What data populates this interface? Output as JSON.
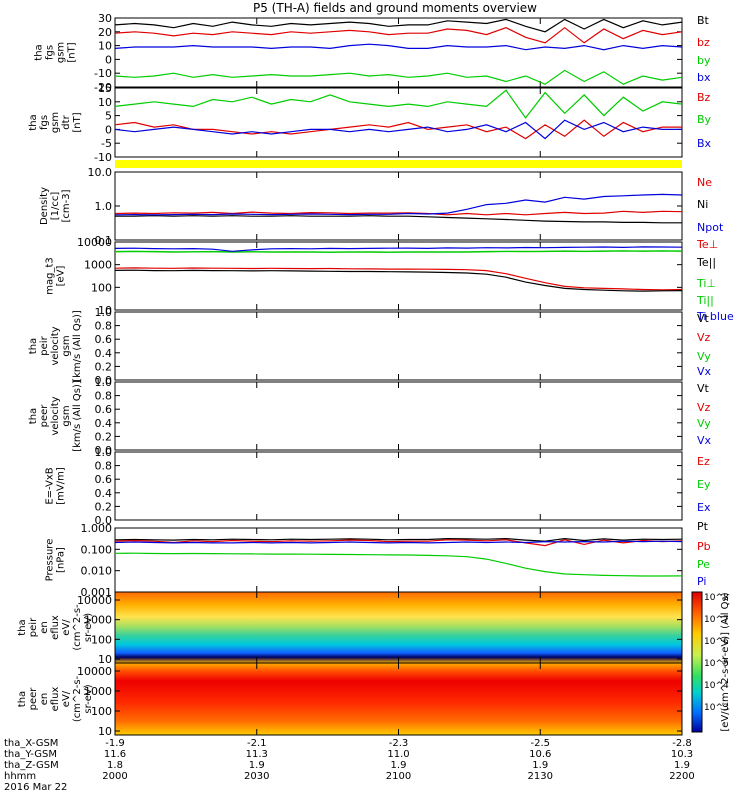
{
  "title": "P5 (TH-A) fields and ground moments overview",
  "colors": {
    "black": "#000000",
    "red": "#e00000",
    "green": "#00cc00",
    "blue": "#0000dd",
    "yellow": "#ffff00"
  },
  "ylabels": [
    [
      "tha",
      "fgs",
      "gsm",
      "[nT]"
    ],
    [
      "tha",
      "fgs",
      "gsm",
      "dtr",
      "[nT]"
    ],
    [
      "Density",
      "[1/cc]",
      "[cm-3]"
    ],
    [
      "mag_t3",
      "[eV]"
    ],
    [
      "tha",
      "peir",
      "velocity",
      "gsm",
      "[km/s (All Qs)]"
    ],
    [
      "tha",
      "peer",
      "velocity",
      "gsm",
      "[km/s (All Qs)]"
    ],
    [
      "E=-VxB",
      "[mV/m]"
    ],
    [
      "Pressure",
      "[nPa]"
    ],
    [
      "tha",
      "peir",
      "en",
      "eflux",
      "eV/",
      "(cm^2-s-",
      "sr-eV)"
    ],
    [
      "tha",
      "peer",
      "en",
      "eflux",
      "eV/",
      "(cm^2-s-",
      "sr-eV)"
    ]
  ],
  "colorbar_label": "[eV/(cm^2-s-sr-eV)] (All Qs)",
  "colorbar_ticks": [
    "10^8",
    "10^7",
    "10^6",
    "10^5",
    "10^4",
    "10^3"
  ],
  "orbit": {
    "rows": [
      "tha_X-GSM",
      "tha_Y-GSM",
      "tha_Z-GSM",
      "hhmm",
      "2016 Mar 22"
    ],
    "ticks": [
      [
        "-1.9",
        "-2.1",
        "-2.3",
        "-2.5",
        "-2.8"
      ],
      [
        "11.6",
        "11.3",
        "11.0",
        "10.6",
        "10.3"
      ],
      [
        "1.8",
        "1.9",
        "1.9",
        "1.9",
        "1.9"
      ],
      [
        "2000",
        "2030",
        "2100",
        "2130",
        "2200"
      ]
    ]
  },
  "chart_data": [
    {
      "type": "line",
      "x_range": [
        "2000",
        "2200"
      ],
      "ylim": [
        -20,
        30
      ],
      "y_ticks": [
        "30",
        "20",
        "10",
        "0",
        "-10",
        "-20"
      ],
      "series": [
        {
          "name": "Bt",
          "color": "#000000",
          "values": [
            25,
            26,
            25,
            23,
            26,
            24,
            27,
            25,
            24,
            26,
            25,
            26,
            27,
            26,
            24,
            25,
            25,
            28,
            27,
            26,
            29,
            24,
            20,
            29,
            22,
            29,
            23,
            28,
            25,
            27
          ]
        },
        {
          "name": "bz",
          "color": "#e00000",
          "values": [
            19,
            20,
            19,
            17,
            19,
            18,
            20,
            19,
            18,
            20,
            19,
            20,
            21,
            20,
            18,
            19,
            19,
            22,
            21,
            18,
            23,
            16,
            12,
            23,
            12,
            22,
            15,
            21,
            18,
            20
          ]
        },
        {
          "name": "by",
          "color": "#00cc00",
          "values": [
            -12,
            -13,
            -12,
            -10,
            -13,
            -11,
            -13,
            -12,
            -11,
            -12,
            -12,
            -11,
            -10,
            -12,
            -11,
            -13,
            -12,
            -10,
            -13,
            -12,
            -16,
            -12,
            -18,
            -8,
            -16,
            -9,
            -18,
            -12,
            -15,
            -13
          ]
        },
        {
          "name": "bx",
          "color": "#0000dd",
          "values": [
            8,
            9,
            9,
            9,
            10,
            9,
            9,
            9,
            8,
            9,
            9,
            8,
            10,
            11,
            10,
            8,
            8,
            10,
            9,
            9,
            10,
            7,
            9,
            8,
            10,
            7,
            10,
            8,
            10,
            9
          ]
        }
      ]
    },
    {
      "type": "line",
      "x_range": [
        "2000",
        "2200"
      ],
      "ylim": [
        -15,
        15
      ],
      "y_ticks": [
        "15",
        "10",
        "5",
        "0",
        "-5",
        "-10"
      ],
      "series": [
        {
          "name": "Bz",
          "color": "#e00000",
          "values": [
            -1,
            0,
            -2,
            -1,
            -3,
            -3,
            -4,
            -5,
            -4,
            -5,
            -4,
            -3,
            -2,
            -1,
            -2,
            0,
            -3,
            -2,
            -1,
            -4,
            -2,
            -7,
            -1,
            -6,
            1,
            -6,
            0,
            -4,
            -2,
            -2
          ]
        },
        {
          "name": "By",
          "color": "#00cc00",
          "values": [
            7,
            8,
            9,
            8,
            7,
            10,
            9,
            11,
            8,
            10,
            9,
            12,
            9,
            8,
            7,
            8,
            7,
            9,
            8,
            7,
            14,
            2,
            13,
            4,
            12,
            3,
            11,
            5,
            9,
            8
          ]
        },
        {
          "name": "Bx",
          "color": "#0000dd",
          "values": [
            -3,
            -4,
            -3,
            -2,
            -3,
            -4,
            -5,
            -4,
            -5,
            -4,
            -3,
            -3,
            -4,
            -3,
            -4,
            -3,
            -2,
            -4,
            -3,
            -1,
            -4,
            0,
            -7,
            1,
            -3,
            0,
            -4,
            -2,
            -3,
            -3
          ]
        }
      ]
    },
    {
      "type": "line",
      "x_range": [
        "2000",
        "2200"
      ],
      "log_scale": true,
      "ylim": [
        0.1,
        10
      ],
      "y_ticks": [
        "10.0",
        "1.0",
        "0.1"
      ],
      "series": [
        {
          "name": "Ne",
          "color": "#e00000",
          "values": [
            0.6,
            0.62,
            0.6,
            0.63,
            0.62,
            0.65,
            0.6,
            0.66,
            0.62,
            0.6,
            0.64,
            0.63,
            0.6,
            0.62,
            0.62,
            0.63,
            0.6,
            0.55,
            0.6,
            0.55,
            0.6,
            0.55,
            0.6,
            0.65,
            0.6,
            0.62,
            0.7,
            0.65,
            0.7,
            0.68
          ]
        },
        {
          "name": "Ni",
          "color": "#000000",
          "values": [
            0.5,
            0.5,
            0.52,
            0.5,
            0.52,
            0.5,
            0.52,
            0.5,
            0.5,
            0.52,
            0.5,
            0.5,
            0.5,
            0.52,
            0.5,
            0.5,
            0.48,
            0.46,
            0.44,
            0.42,
            0.4,
            0.38,
            0.36,
            0.35,
            0.34,
            0.34,
            0.33,
            0.33,
            0.32,
            0.32
          ]
        },
        {
          "name": "Npot",
          "color": "#0000dd",
          "values": [
            0.55,
            0.56,
            0.55,
            0.56,
            0.57,
            0.56,
            0.58,
            0.57,
            0.56,
            0.57,
            0.58,
            0.57,
            0.56,
            0.57,
            0.57,
            0.6,
            0.58,
            0.62,
            0.8,
            1.1,
            1.2,
            1.5,
            1.3,
            1.8,
            1.6,
            1.9,
            2.0,
            2.1,
            2.2,
            2.1
          ]
        }
      ]
    },
    {
      "type": "line",
      "x_range": [
        "2000",
        "2200"
      ],
      "log_scale": true,
      "ylim": [
        10,
        10000
      ],
      "y_ticks": [
        "10000",
        "1000",
        "100",
        "10"
      ],
      "series": [
        {
          "name": "Te⊥",
          "color": "#e00000",
          "values": [
            700,
            720,
            700,
            690,
            710,
            700,
            690,
            680,
            690,
            680,
            670,
            680,
            660,
            650,
            640,
            640,
            630,
            620,
            600,
            550,
            400,
            250,
            160,
            110,
            95,
            90,
            85,
            80,
            78,
            80
          ]
        },
        {
          "name": "Te||",
          "color": "#000000",
          "values": [
            560,
            570,
            550,
            540,
            560,
            550,
            540,
            530,
            540,
            530,
            520,
            510,
            500,
            500,
            490,
            480,
            470,
            450,
            430,
            380,
            280,
            170,
            120,
            90,
            80,
            75,
            70,
            68,
            70,
            72
          ]
        },
        {
          "name": "Ti⊥",
          "color": "#00cc00",
          "values": [
            3800,
            3900,
            3800,
            3700,
            3700,
            3800,
            3700,
            3750,
            3700,
            3650,
            3700,
            3600,
            3700,
            3650,
            3600,
            3650,
            3700,
            3650,
            3700,
            3800,
            3900,
            3850,
            3900,
            4000,
            3900,
            4000,
            4100,
            4000,
            4100,
            4000
          ]
        },
        {
          "name": "Ti||",
          "color": "#00cc00",
          "values": [
            3700,
            3800,
            3700,
            3600,
            3650,
            3700,
            3600,
            3650,
            3600,
            3550,
            3600,
            3500,
            3600,
            3550,
            3500,
            3550,
            3600,
            3550,
            3600,
            3700,
            3800,
            3750,
            3800,
            3900,
            3800,
            3900,
            4000,
            3900,
            4000,
            3900
          ]
        },
        {
          "name": "Ti blue",
          "color": "#0000dd",
          "values": [
            5200,
            5300,
            5100,
            5000,
            5100,
            4800,
            3900,
            4500,
            5000,
            5100,
            5000,
            5200,
            5100,
            5200,
            5300,
            5400,
            5200,
            5500,
            5400,
            5600,
            5500,
            5700,
            5600,
            5800,
            5900,
            6000,
            5800,
            6100,
            6000,
            5900
          ]
        }
      ]
    },
    {
      "type": "line",
      "x_range": [
        "2000",
        "2200"
      ],
      "ylim": [
        0,
        1
      ],
      "y_ticks": [
        "1.0",
        "0.8",
        "0.6",
        "0.4",
        "0.2",
        "0.0"
      ],
      "series": [
        {
          "name": "Vt",
          "color": "#000000",
          "values": []
        },
        {
          "name": "Vz",
          "color": "#e00000",
          "values": []
        },
        {
          "name": "Vy",
          "color": "#00cc00",
          "values": []
        },
        {
          "name": "Vx",
          "color": "#0000dd",
          "values": []
        }
      ]
    },
    {
      "type": "line",
      "x_range": [
        "2000",
        "2200"
      ],
      "ylim": [
        0,
        1
      ],
      "y_ticks": [
        "1.0",
        "0.8",
        "0.6",
        "0.4",
        "0.2",
        "0.0"
      ],
      "series": [
        {
          "name": "Vt",
          "color": "#000000",
          "values": []
        },
        {
          "name": "Vz",
          "color": "#e00000",
          "values": []
        },
        {
          "name": "Vy",
          "color": "#00cc00",
          "values": []
        },
        {
          "name": "Vx",
          "color": "#0000dd",
          "values": []
        }
      ]
    },
    {
      "type": "line",
      "x_range": [
        "2000",
        "2200"
      ],
      "ylim": [
        0,
        1
      ],
      "y_ticks": [
        "1.0",
        "0.8",
        "0.6",
        "0.4",
        "0.2",
        "0.0"
      ],
      "series": [
        {
          "name": "Ez",
          "color": "#e00000",
          "values": []
        },
        {
          "name": "Ey",
          "color": "#00cc00",
          "values": []
        },
        {
          "name": "Ex",
          "color": "#0000dd",
          "values": []
        }
      ]
    },
    {
      "type": "line",
      "x_range": [
        "2000",
        "2200"
      ],
      "log_scale": true,
      "ylim": [
        0.001,
        1
      ],
      "y_ticks": [
        "1.000",
        "0.100",
        "0.010",
        "0.001"
      ],
      "series": [
        {
          "name": "Pt",
          "color": "#000000",
          "values": [
            0.28,
            0.29,
            0.28,
            0.27,
            0.29,
            0.28,
            0.3,
            0.29,
            0.28,
            0.3,
            0.29,
            0.3,
            0.31,
            0.3,
            0.28,
            0.29,
            0.29,
            0.32,
            0.31,
            0.3,
            0.32,
            0.27,
            0.24,
            0.32,
            0.26,
            0.31,
            0.27,
            0.3,
            0.29,
            0.3
          ]
        },
        {
          "name": "Pb",
          "color": "#e00000",
          "values": [
            0.24,
            0.26,
            0.24,
            0.21,
            0.25,
            0.23,
            0.26,
            0.24,
            0.23,
            0.25,
            0.24,
            0.25,
            0.27,
            0.26,
            0.23,
            0.24,
            0.24,
            0.28,
            0.27,
            0.25,
            0.28,
            0.2,
            0.15,
            0.28,
            0.17,
            0.27,
            0.2,
            0.26,
            0.23,
            0.25
          ]
        },
        {
          "name": "Pe",
          "color": "#00cc00",
          "values": [
            0.065,
            0.066,
            0.064,
            0.063,
            0.064,
            0.063,
            0.062,
            0.061,
            0.06,
            0.06,
            0.059,
            0.058,
            0.057,
            0.056,
            0.055,
            0.054,
            0.052,
            0.05,
            0.045,
            0.035,
            0.022,
            0.013,
            0.009,
            0.007,
            0.0065,
            0.006,
            0.0058,
            0.0056,
            0.0056,
            0.0057
          ]
        },
        {
          "name": "Pi",
          "color": "#0000dd",
          "values": [
            0.21,
            0.22,
            0.21,
            0.2,
            0.21,
            0.2,
            0.2,
            0.21,
            0.2,
            0.21,
            0.2,
            0.21,
            0.22,
            0.21,
            0.2,
            0.21,
            0.2,
            0.21,
            0.22,
            0.21,
            0.22,
            0.21,
            0.23,
            0.22,
            0.23,
            0.22,
            0.24,
            0.23,
            0.24,
            0.23
          ]
        }
      ]
    },
    {
      "type": "heatmap",
      "x_range": [
        "2000",
        "2200"
      ],
      "log_scale": true,
      "ylim": [
        5,
        20000
      ],
      "y_ticks": [
        "10000",
        "1000",
        "100",
        "10"
      ],
      "colorbar_ticks": [
        "10^8",
        "10^7",
        "10^6",
        "10^5",
        "10^4",
        "10^3"
      ]
    },
    {
      "type": "heatmap",
      "x_range": [
        "2000",
        "2200"
      ],
      "log_scale": true,
      "ylim": [
        5,
        20000
      ],
      "y_ticks": [
        "10000",
        "1000",
        "100",
        "10"
      ],
      "colorbar_ticks": [
        "10^8",
        "10^7",
        "10^6",
        "10^5",
        "10^4",
        "10^3"
      ]
    }
  ]
}
